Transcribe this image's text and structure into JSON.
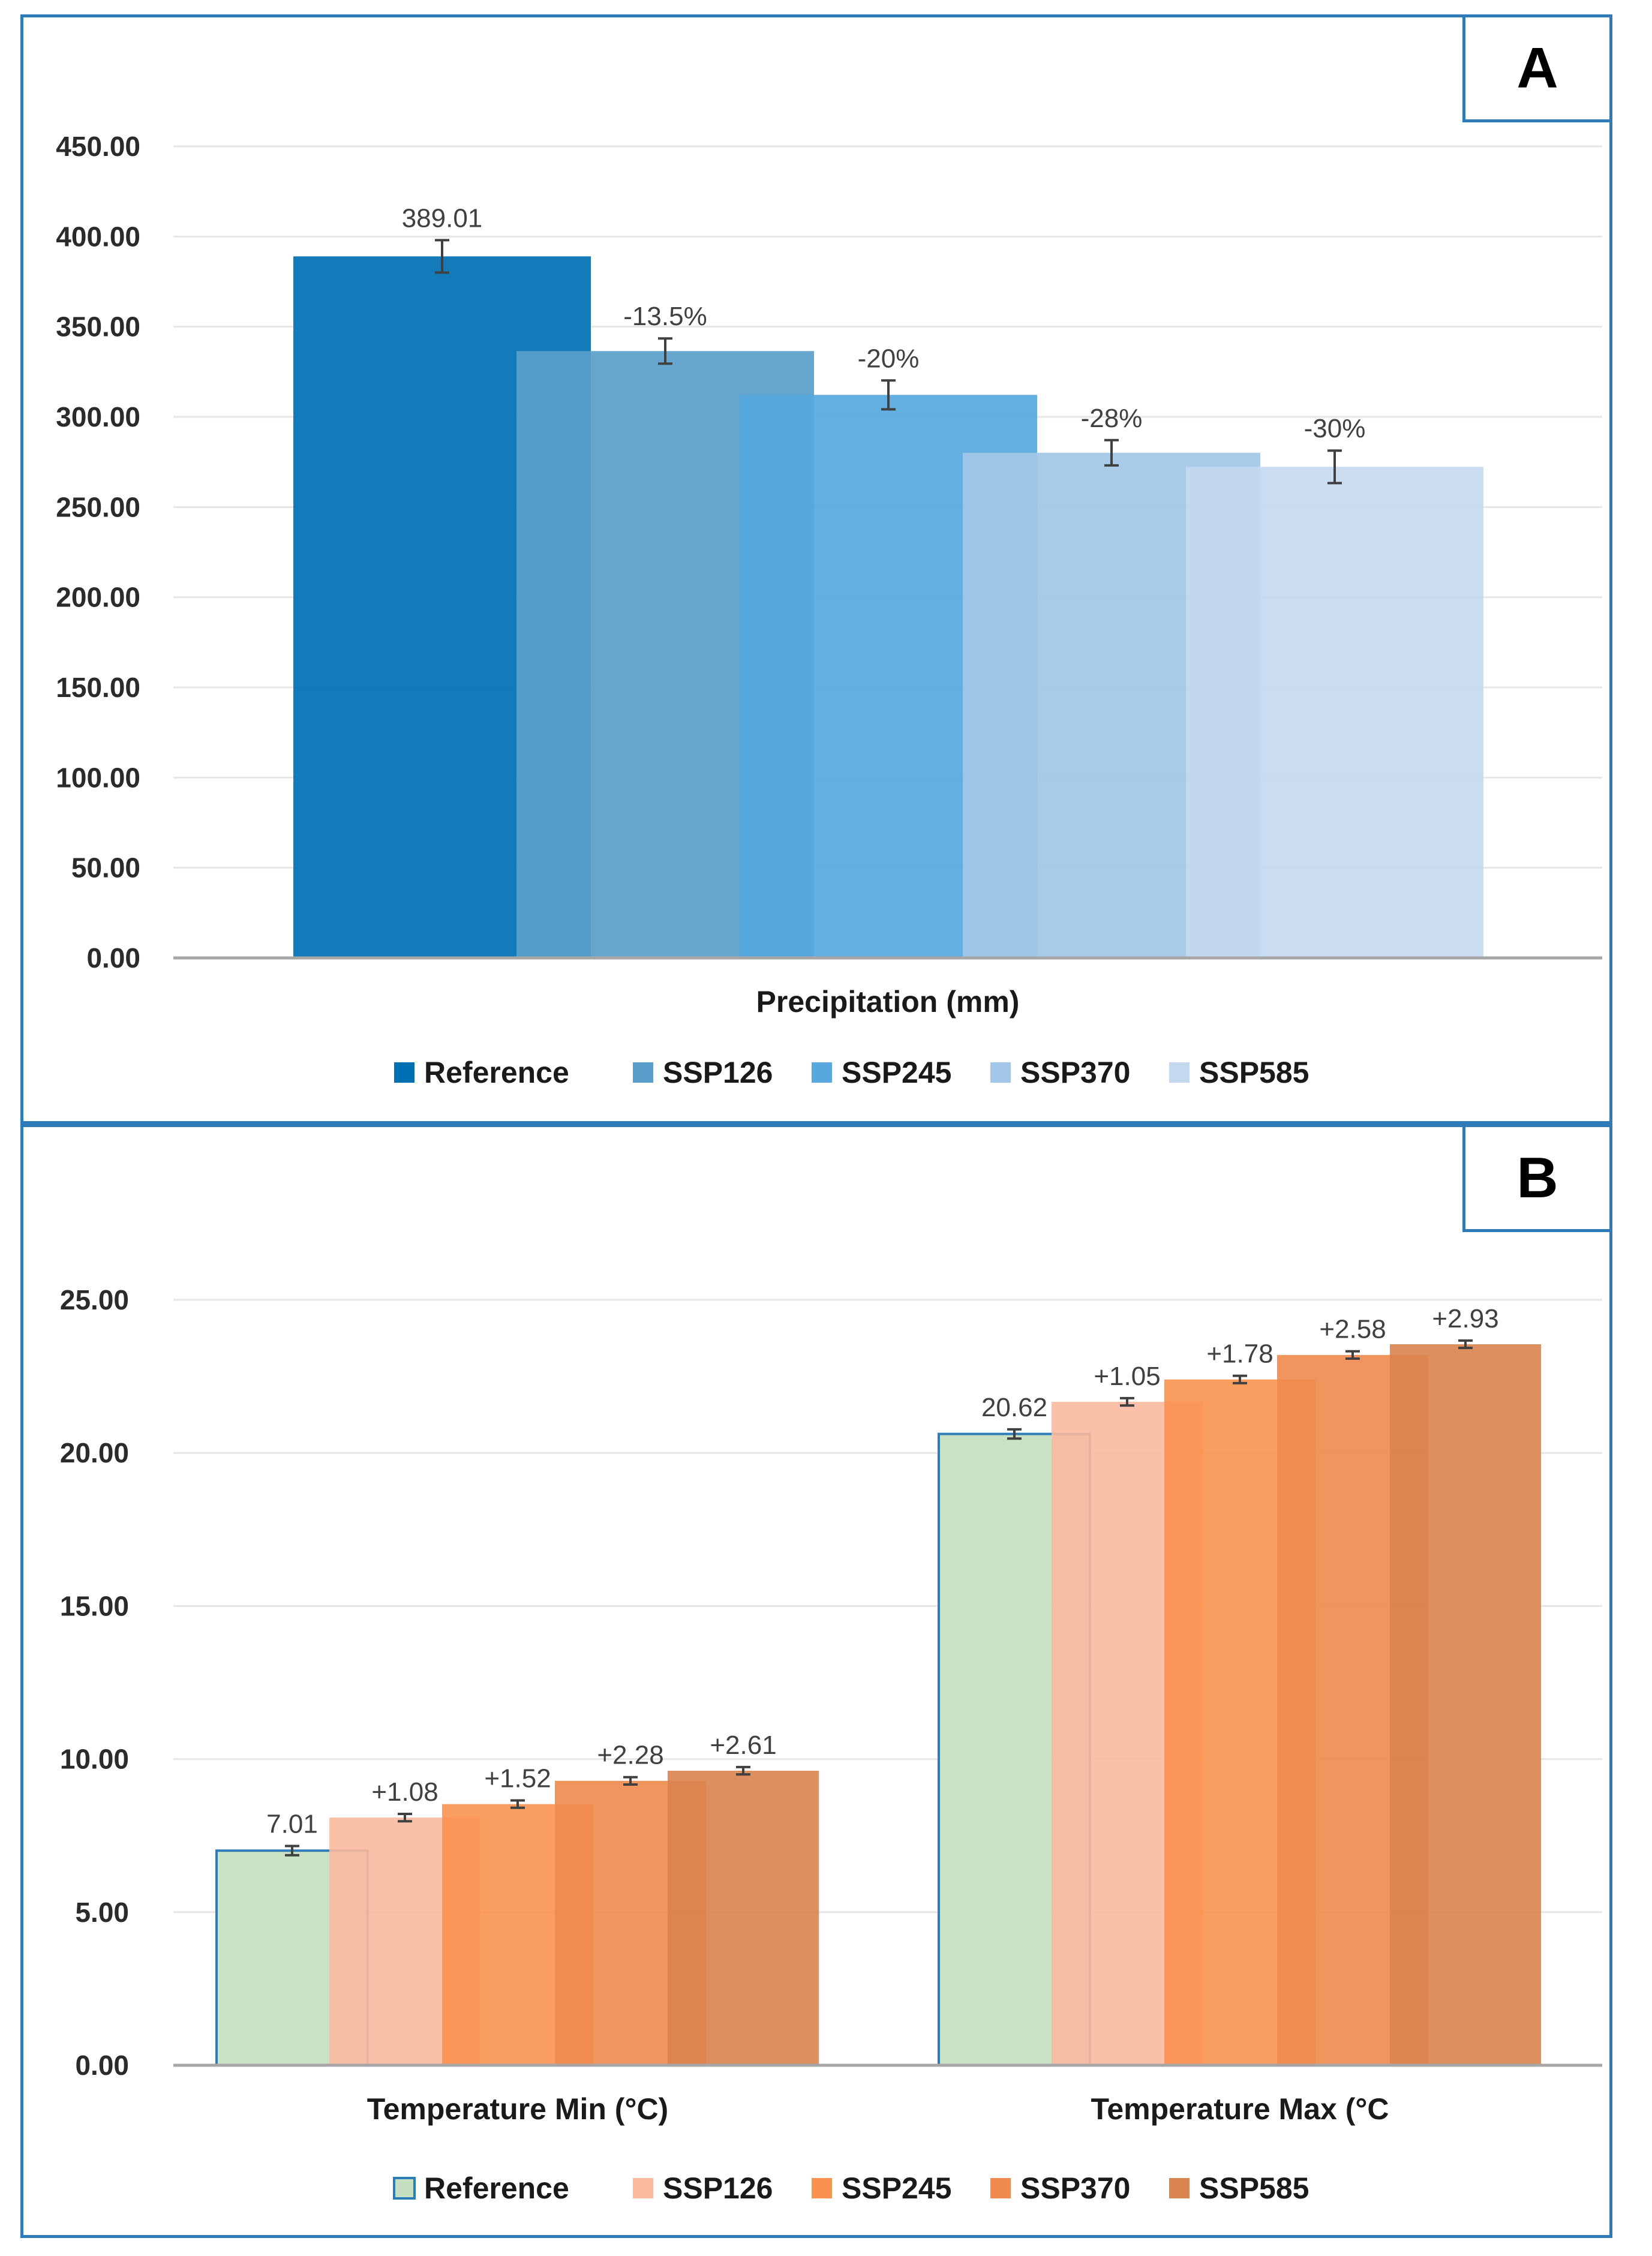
{
  "chart_data": [
    {
      "type": "bar",
      "panel_label": "A",
      "title": "",
      "categories": [
        "Precipitation (mm)"
      ],
      "series": [
        {
          "name": "Reference",
          "color": "#0070b4",
          "values": [
            389.01
          ],
          "label": "389.01",
          "error": 9
        },
        {
          "name": "SSP126",
          "color": "#5a9fcb",
          "values": [
            336.5
          ],
          "label": "-13.5%",
          "error": 7
        },
        {
          "name": "SSP245",
          "color": "#56a8de",
          "values": [
            312.2
          ],
          "label": "-20%",
          "error": 8
        },
        {
          "name": "SSP370",
          "color": "#a3c7e6",
          "values": [
            280.1
          ],
          "label": "-28%",
          "error": 7
        },
        {
          "name": "SSP585",
          "color": "#c4d9ef",
          "values": [
            272.3
          ],
          "label": "-30%",
          "error": 9
        }
      ],
      "xlabel": "Precipitation (mm)",
      "ylabel": "",
      "ylim": [
        0,
        450
      ],
      "yticks": [
        "0.00",
        "50.00",
        "100.00",
        "150.00",
        "200.00",
        "250.00",
        "300.00",
        "350.00",
        "400.00",
        "450.00"
      ],
      "grid": true,
      "legend": "bottom"
    },
    {
      "type": "bar",
      "panel_label": "B",
      "title": "",
      "categories": [
        "Temperature Min (°C)",
        "Temperature Max (°C"
      ],
      "series": [
        {
          "name": "Reference",
          "color": "#c5e0c0",
          "edge": "#2e7dbb",
          "values": [
            7.01,
            20.62
          ],
          "labels": [
            "7.01",
            "20.62"
          ],
          "errors": [
            0.15,
            0.15
          ]
        },
        {
          "name": "SSP126",
          "color": "#fbb99e",
          "values": [
            8.09,
            21.67
          ],
          "labels": [
            "+1.08",
            "+1.05"
          ],
          "errors": [
            0.12,
            0.12
          ]
        },
        {
          "name": "SSP245",
          "color": "#f9924f",
          "values": [
            8.53,
            22.4
          ],
          "labels": [
            "+1.52",
            "+1.78"
          ],
          "errors": [
            0.12,
            0.12
          ]
        },
        {
          "name": "SSP370",
          "color": "#f08a4e",
          "values": [
            9.29,
            23.2
          ],
          "labels": [
            "+2.28",
            "+2.58"
          ],
          "errors": [
            0.12,
            0.12
          ]
        },
        {
          "name": "SSP585",
          "color": "#d9834e",
          "values": [
            9.62,
            23.55
          ],
          "labels": [
            "+2.61",
            "+2.93"
          ],
          "errors": [
            0.12,
            0.12
          ]
        }
      ],
      "xlabel": "",
      "ylabel": "",
      "ylim": [
        0,
        25
      ],
      "yticks": [
        "0.00",
        "5.00",
        "10.00",
        "15.00",
        "20.00",
        "25.00"
      ],
      "grid": true,
      "legend": "bottom"
    }
  ],
  "colors": {
    "frame": "#2f7bb8",
    "grid": "#e6e6e6",
    "axis": "#a6a6a6",
    "errorbar": "#404040"
  }
}
